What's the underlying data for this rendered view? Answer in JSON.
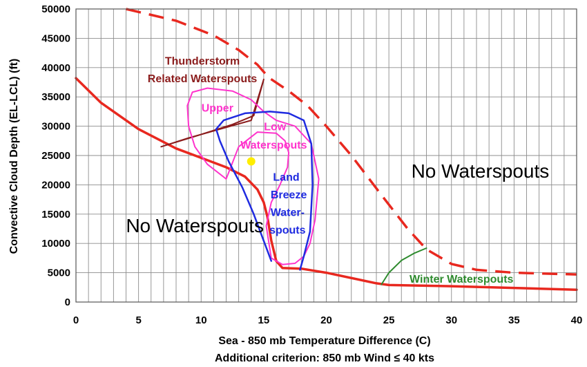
{
  "chart_data": {
    "type": "line",
    "xlabel": "Sea - 850 mb Temperature Difference (C)",
    "xlabel_note": "Additional criterion: 850 mb Wind ≤ 40 kts",
    "ylabel": "Convective Cloud Depth (EL-LCL) (ft)",
    "xlim": [
      0,
      40
    ],
    "ylim": [
      0,
      50000
    ],
    "x_ticks": [
      "0",
      "5",
      "10",
      "15",
      "20",
      "25",
      "30",
      "35",
      "40"
    ],
    "y_ticks": [
      "0",
      "5000",
      "10000",
      "15000",
      "20000",
      "25000",
      "30000",
      "35000",
      "40000",
      "45000",
      "50000"
    ],
    "grid": true,
    "colors": {
      "boundary": "#e8281f",
      "thunderstorm": "#8b1c1c",
      "upper_low": "#ff33cc",
      "land_breeze": "#1f2be0",
      "winter": "#2e8b2e",
      "marker": "#ffee00"
    },
    "annotations": [
      {
        "id": "no-waterspouts-left",
        "text": "No Waterspouts",
        "x": 9.5,
        "y": 12800,
        "color": "#000000",
        "size": 28,
        "weight": "normal"
      },
      {
        "id": "no-waterspouts-right",
        "text": "No Waterspouts",
        "x": 32.3,
        "y": 22100,
        "color": "#000000",
        "size": 28,
        "weight": "normal"
      },
      {
        "id": "thunderstorm-line1",
        "text": "Thunderstorm",
        "x": 10.1,
        "y": 41000,
        "color": "#8b1c1c",
        "size": 16,
        "weight": "bold"
      },
      {
        "id": "thunderstorm-line2",
        "text": "Related Waterspouts",
        "x": 10.1,
        "y": 38000,
        "color": "#8b1c1c",
        "size": 16,
        "weight": "bold"
      },
      {
        "id": "upper-label",
        "text": "Upper",
        "x": 11.3,
        "y": 33000,
        "color": "#ff33cc",
        "size": 16,
        "weight": "bold"
      },
      {
        "id": "low-label",
        "text": "Low",
        "x": 15.9,
        "y": 29800,
        "color": "#ff33cc",
        "size": 16,
        "weight": "bold"
      },
      {
        "id": "waterspouts-label",
        "text": "Waterspouts",
        "x": 15.8,
        "y": 26700,
        "color": "#ff33cc",
        "size": 16,
        "weight": "bold"
      },
      {
        "id": "land-label",
        "text": "Land",
        "x": 16.8,
        "y": 21200,
        "color": "#1f2be0",
        "size": 16,
        "weight": "bold"
      },
      {
        "id": "breeze-label",
        "text": "Breeze",
        "x": 17.0,
        "y": 18200,
        "color": "#1f2be0",
        "size": 16,
        "weight": "bold"
      },
      {
        "id": "water-label",
        "text": "Water-",
        "x": 16.9,
        "y": 15200,
        "color": "#1f2be0",
        "size": 16,
        "weight": "bold"
      },
      {
        "id": "spouts-label",
        "text": "spouts",
        "x": 16.9,
        "y": 12200,
        "color": "#1f2be0",
        "size": 16,
        "weight": "bold"
      },
      {
        "id": "winter-label",
        "text": "Winter Waterspouts",
        "x": 30.8,
        "y": 3800,
        "color": "#2e8b2e",
        "size": 16,
        "weight": "bold"
      }
    ],
    "series": [
      {
        "id": "lower-boundary",
        "style": "solid",
        "color": "#e8281f",
        "width": 3.5,
        "x": [
          0,
          2,
          5,
          8,
          10,
          12,
          13.5,
          14.5,
          15,
          15.3,
          15.6,
          16,
          16.5,
          18,
          20,
          24,
          25,
          30,
          35,
          40
        ],
        "y": [
          38200,
          34000,
          29500,
          26200,
          24600,
          23000,
          21400,
          19200,
          17000,
          14500,
          10500,
          7000,
          5800,
          5700,
          5000,
          3200,
          2900,
          2700,
          2400,
          2100
        ]
      },
      {
        "id": "upper-boundary-dashed",
        "style": "dashed",
        "color": "#e8281f",
        "width": 3.5,
        "x": [
          4,
          8,
          11,
          13,
          14.5,
          15.4,
          17,
          18.5,
          20,
          22,
          24.5,
          26.5,
          28,
          30,
          32,
          35,
          40
        ],
        "y": [
          50000,
          48000,
          45500,
          43000,
          40500,
          38300,
          36000,
          33500,
          30000,
          25000,
          18000,
          12500,
          9000,
          6500,
          5500,
          5000,
          4700
        ]
      },
      {
        "id": "thunderstorm-region",
        "style": "solid",
        "color": "#8b1c1c",
        "width": 2,
        "x": [
          6.8,
          9,
          12,
          14,
          15.0,
          14.2,
          12.5,
          10,
          6.8
        ],
        "y": [
          26500,
          28000,
          29800,
          31000,
          38000,
          31800,
          30300,
          28600,
          26500
        ]
      },
      {
        "id": "upper-low-waterspouts-region",
        "style": "solid",
        "color": "#ff33cc",
        "width": 2,
        "x": [
          12.0,
          10.5,
          9.5,
          9.0,
          8.9,
          9.3,
          10.5,
          12.5,
          14.0,
          15.0,
          16.0,
          17.5,
          18.8,
          19.4,
          19.1,
          18.7,
          18.2,
          17.5,
          16.5,
          15.6,
          15.2,
          15.6,
          16.3,
          16.9,
          17.0,
          16.7,
          16.0,
          14.5,
          13.0,
          12.0
        ],
        "y": [
          21000,
          23500,
          26500,
          30000,
          33500,
          35800,
          36500,
          36000,
          34500,
          32500,
          31000,
          30000,
          27000,
          21000,
          14000,
          10000,
          7800,
          6600,
          6400,
          7500,
          13000,
          17000,
          20000,
          23000,
          25500,
          27500,
          28800,
          29000,
          26500,
          21000
        ]
      },
      {
        "id": "land-breeze-waterspouts-region",
        "style": "solid",
        "color": "#1f2be0",
        "width": 2.5,
        "x": [
          15.6,
          14.2,
          13.3,
          12.2,
          11.5,
          11.2,
          11.8,
          13.5,
          15.5,
          17.0,
          18.2,
          18.8,
          18.9,
          18.7,
          18.2,
          17.9
        ],
        "y": [
          7000,
          15000,
          19500,
          24000,
          27500,
          29500,
          31000,
          32200,
          32500,
          32200,
          31000,
          27000,
          20000,
          12000,
          7800,
          5500
        ]
      },
      {
        "id": "winter-waterspouts-boundary",
        "style": "solid",
        "color": "#2e8b2e",
        "width": 2,
        "x": [
          24.4,
          25.0,
          26.0,
          27.0,
          28.0
        ],
        "y": [
          3000,
          5000,
          7100,
          8300,
          9200
        ]
      }
    ],
    "markers": [
      {
        "id": "yellow-dot",
        "x": 14.0,
        "y": 24000,
        "color": "#ffee00"
      }
    ]
  }
}
